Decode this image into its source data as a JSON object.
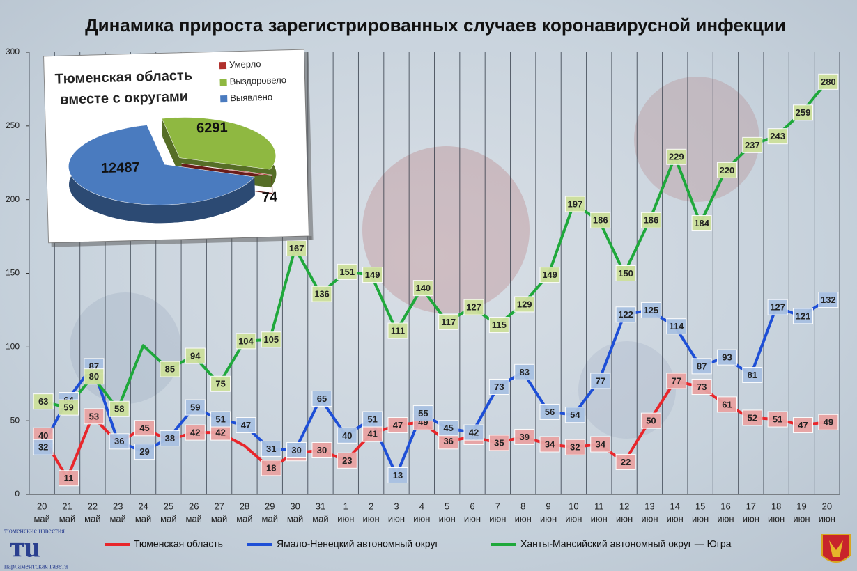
{
  "chart_data": [
    {
      "type": "line",
      "title": "Динамика прироста зарегистрированных случаев коронавирусной инфекции",
      "categories": [
        [
          "20",
          "май"
        ],
        [
          "21",
          "май"
        ],
        [
          "22",
          "май"
        ],
        [
          "23",
          "май"
        ],
        [
          "24",
          "май"
        ],
        [
          "25",
          "май"
        ],
        [
          "26",
          "май"
        ],
        [
          "27",
          "май"
        ],
        [
          "28",
          "май"
        ],
        [
          "29",
          "май"
        ],
        [
          "30",
          "май"
        ],
        [
          "31",
          "май"
        ],
        [
          "1",
          "июн"
        ],
        [
          "2",
          "июн"
        ],
        [
          "3",
          "июн"
        ],
        [
          "4",
          "июн"
        ],
        [
          "5",
          "июн"
        ],
        [
          "6",
          "июн"
        ],
        [
          "7",
          "июн"
        ],
        [
          "8",
          "июн"
        ],
        [
          "9",
          "июн"
        ],
        [
          "10",
          "июн"
        ],
        [
          "11",
          "июн"
        ],
        [
          "12",
          "июн"
        ],
        [
          "13",
          "июн"
        ],
        [
          "14",
          "июн"
        ],
        [
          "15",
          "июн"
        ],
        [
          "16",
          "июн"
        ],
        [
          "17",
          "июн"
        ],
        [
          "18",
          "июн"
        ],
        [
          "19",
          "июн"
        ],
        [
          "20",
          "июн"
        ]
      ],
      "series": [
        {
          "name": "Тюменская область",
          "color": "#e8262b",
          "label_color": "#e9a3a3",
          "values": [
            40,
            11,
            53,
            35,
            45,
            37,
            42,
            42,
            33,
            18,
            28,
            30,
            23,
            41,
            47,
            49,
            36,
            39,
            35,
            39,
            34,
            32,
            34,
            22,
            50,
            77,
            73,
            61,
            52,
            51,
            47,
            49
          ],
          "value_labels": [
            40,
            11,
            53,
            null,
            45,
            null,
            42,
            42,
            null,
            18,
            28,
            30,
            23,
            41,
            47,
            49,
            36,
            39,
            35,
            39,
            34,
            32,
            34,
            22,
            50,
            77,
            73,
            61,
            52,
            51,
            47,
            49
          ]
        },
        {
          "name": "Ямало-Ненецкий автономный округ",
          "color": "#1e4fd6",
          "label_color": "#a9c1e2",
          "values": [
            32,
            64,
            87,
            36,
            29,
            38,
            59,
            51,
            47,
            31,
            30,
            65,
            40,
            51,
            13,
            55,
            45,
            42,
            73,
            83,
            56,
            54,
            77,
            122,
            125,
            114,
            87,
            93,
            81,
            127,
            121,
            132
          ],
          "value_labels": [
            32,
            64,
            87,
            36,
            29,
            38,
            59,
            51,
            47,
            31,
            30,
            65,
            40,
            51,
            13,
            55,
            45,
            42,
            73,
            83,
            56,
            54,
            77,
            122,
            125,
            114,
            87,
            93,
            81,
            127,
            121,
            132
          ]
        },
        {
          "name": "Ханты-Мансийский автономный округ — Югра",
          "color": "#1fa83b",
          "label_color": "#cde09c",
          "values": [
            63,
            59,
            80,
            58,
            101,
            85,
            94,
            75,
            104,
            105,
            167,
            136,
            151,
            149,
            111,
            140,
            117,
            127,
            115,
            129,
            149,
            197,
            186,
            150,
            186,
            229,
            184,
            220,
            237,
            243,
            259,
            280
          ],
          "value_labels": [
            63,
            59,
            80,
            58,
            null,
            85,
            94,
            75,
            104,
            105,
            167,
            136,
            151,
            149,
            111,
            140,
            117,
            127,
            115,
            129,
            149,
            197,
            186,
            150,
            186,
            229,
            184,
            220,
            237,
            243,
            259,
            280
          ]
        }
      ],
      "ylim": [
        0,
        300
      ],
      "yticks": [
        0,
        50,
        100,
        150,
        200,
        250,
        300
      ],
      "grid": true
    },
    {
      "type": "pie",
      "title_lines": [
        "Тюменская область",
        "вместе с округами"
      ],
      "categories": [
        "Умерло",
        "Выздоровело",
        "Выявлено"
      ],
      "values": [
        74,
        6291,
        12487
      ],
      "colors": [
        "#b0302c",
        "#8fb841",
        "#4a7bbf"
      ]
    }
  ],
  "logo": {
    "top": "тюменские известия",
    "mark": "тu",
    "bottom": "парламентская газета"
  }
}
